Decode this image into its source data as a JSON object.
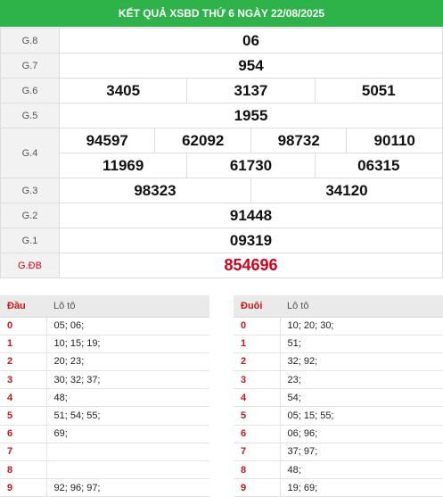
{
  "header": {
    "title": "KẾT QUẢ XSBD THỨ 6 NGÀY 22/08/2025"
  },
  "prizes": {
    "g8": {
      "label": "G.8",
      "values": [
        "06"
      ]
    },
    "g7": {
      "label": "G.7",
      "values": [
        "954"
      ]
    },
    "g6": {
      "label": "G.6",
      "values": [
        "3405",
        "3137",
        "5051"
      ]
    },
    "g5": {
      "label": "G.5",
      "values": [
        "1955"
      ]
    },
    "g4": {
      "label": "G.4",
      "values": [
        "94597",
        "62092",
        "98732",
        "90110",
        "11969",
        "61730",
        "06315"
      ]
    },
    "g3": {
      "label": "G.3",
      "values": [
        "98323",
        "34120"
      ]
    },
    "g2": {
      "label": "G.2",
      "values": [
        "91448"
      ]
    },
    "g1": {
      "label": "G.1",
      "values": [
        "09319"
      ]
    },
    "gdb": {
      "label": "G.ĐB",
      "values": [
        "854696"
      ]
    }
  },
  "dau_table": {
    "col_key": "Đầu",
    "col_value": "Lô tô",
    "rows": [
      {
        "key": "0",
        "value": "05; 06;"
      },
      {
        "key": "1",
        "value": "10; 15; 19;"
      },
      {
        "key": "2",
        "value": "20; 23;"
      },
      {
        "key": "3",
        "value": "30; 32; 37;"
      },
      {
        "key": "4",
        "value": "48;"
      },
      {
        "key": "5",
        "value": "51; 54; 55;"
      },
      {
        "key": "6",
        "value": "69;"
      },
      {
        "key": "7",
        "value": ""
      },
      {
        "key": "8",
        "value": ""
      },
      {
        "key": "9",
        "value": "92; 96; 97;"
      }
    ]
  },
  "duoi_table": {
    "col_key": "Đuôi",
    "col_value": "Lô tô",
    "rows": [
      {
        "key": "0",
        "value": "10; 20; 30;"
      },
      {
        "key": "1",
        "value": "51;"
      },
      {
        "key": "2",
        "value": "32; 92;"
      },
      {
        "key": "3",
        "value": "23;"
      },
      {
        "key": "4",
        "value": "54;"
      },
      {
        "key": "5",
        "value": "05; 15; 55;"
      },
      {
        "key": "6",
        "value": "06; 96;"
      },
      {
        "key": "7",
        "value": "37; 97;"
      },
      {
        "key": "8",
        "value": "48;"
      },
      {
        "key": "9",
        "value": "19; 69;"
      }
    ]
  },
  "colors": {
    "header_bg": "#2db34a",
    "special_prize": "#d0021b",
    "key_red": "#c8161d"
  }
}
